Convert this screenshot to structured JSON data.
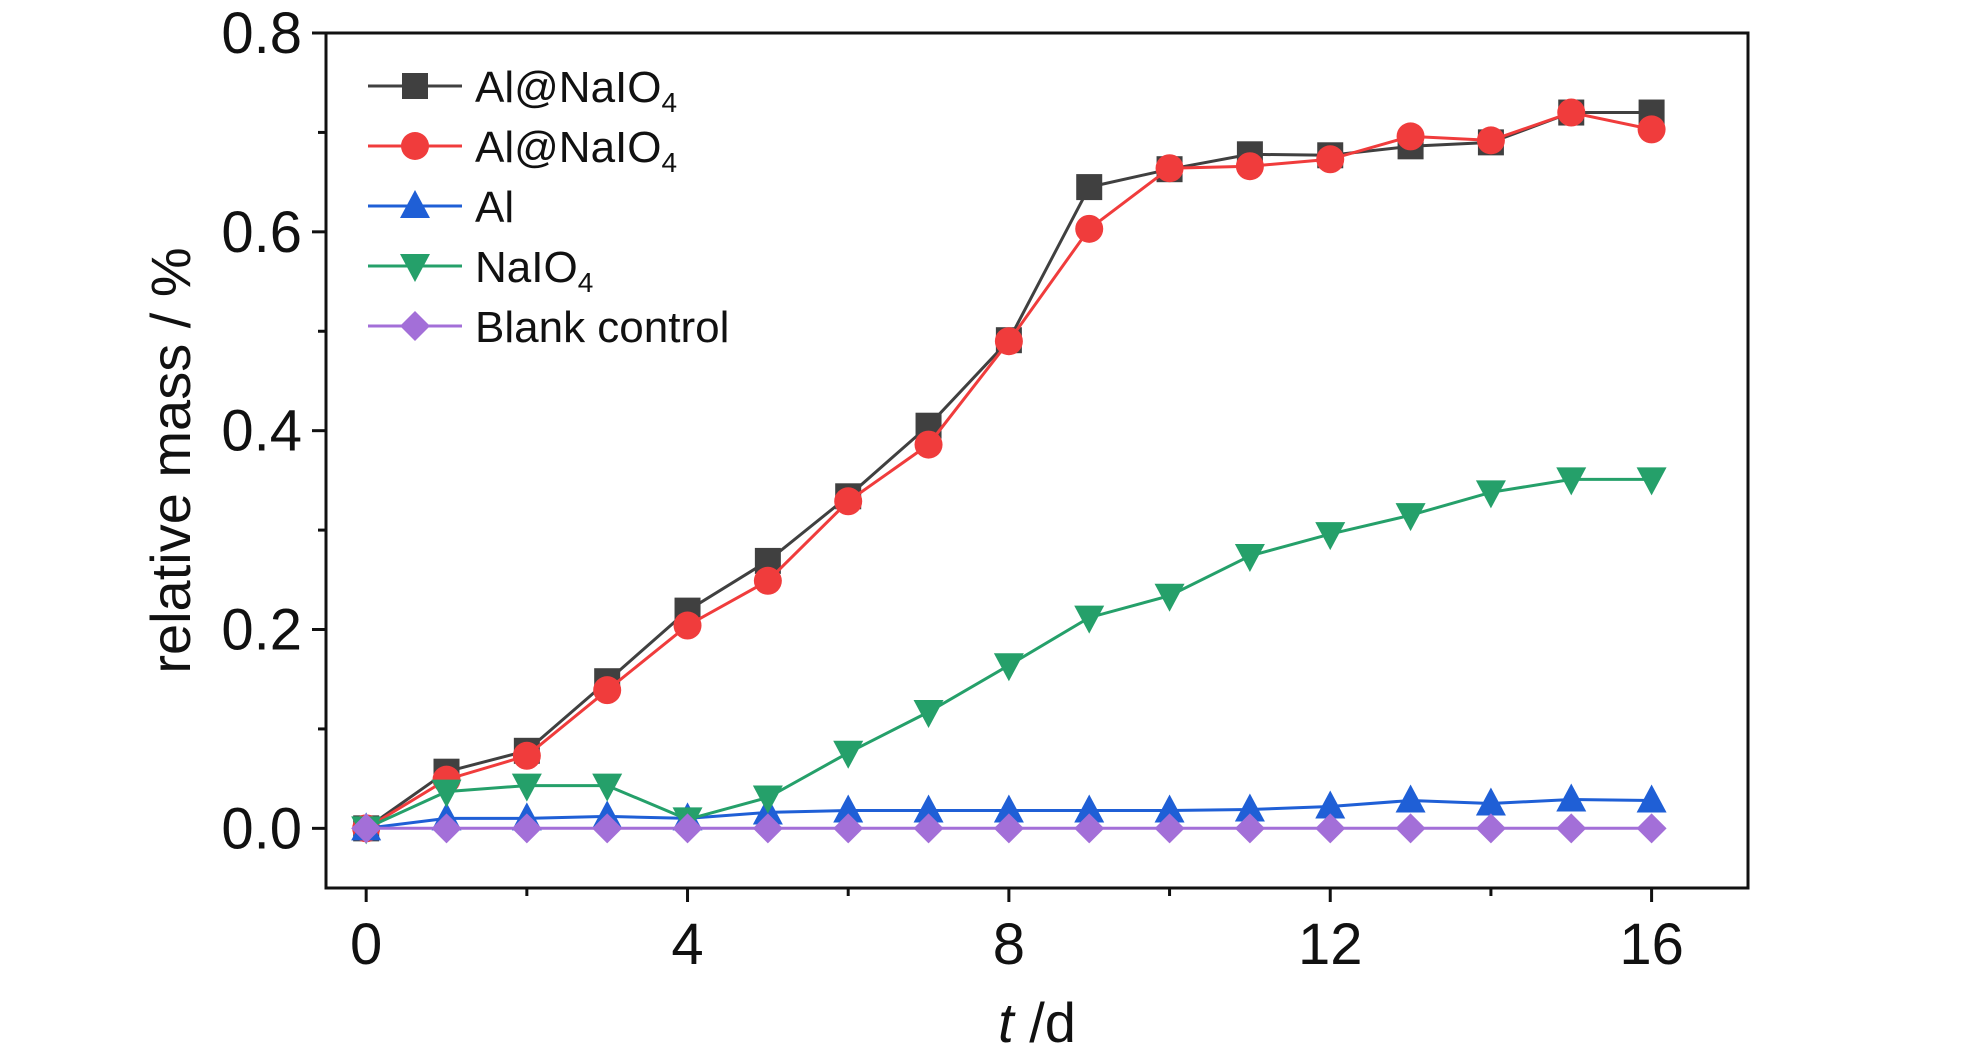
{
  "chart_data": {
    "type": "line",
    "title": "",
    "xlabel_italic": "t",
    "xlabel_unit": " /d",
    "ylabel": "relative mass / %",
    "xlim": [
      -0.5,
      17.2
    ],
    "ylim": [
      -0.06,
      0.8
    ],
    "xticks": [
      0,
      4,
      8,
      12,
      16
    ],
    "xtick_labels": [
      "0",
      "4",
      "8",
      "12",
      "16"
    ],
    "yticks": [
      0.0,
      0.2,
      0.4,
      0.6,
      0.8
    ],
    "ytick_labels": [
      "0.0",
      "0.2",
      "0.4",
      "0.6",
      "0.8"
    ],
    "x": [
      0,
      1,
      2,
      3,
      4,
      5,
      6,
      7,
      8,
      9,
      10,
      11,
      12,
      13,
      14,
      15,
      16
    ],
    "legend_position": "top-left",
    "series": [
      {
        "name_main": "Al@NaIO",
        "name_sub": "4",
        "color": "#404040",
        "marker": "square",
        "values": [
          0.0,
          0.057,
          0.078,
          0.148,
          0.219,
          0.269,
          0.334,
          0.405,
          0.491,
          0.645,
          0.663,
          0.678,
          0.677,
          0.686,
          0.69,
          0.72,
          0.72
        ]
      },
      {
        "name_main": "Al@NaIO",
        "name_sub": "4",
        "color": "#f03c3c",
        "marker": "circle",
        "values": [
          0.0,
          0.049,
          0.073,
          0.139,
          0.204,
          0.249,
          0.329,
          0.386,
          0.49,
          0.603,
          0.664,
          0.666,
          0.673,
          0.696,
          0.692,
          0.72,
          0.703
        ]
      },
      {
        "name_main": "Al",
        "name_sub": "",
        "color": "#1f5fd6",
        "marker": "triangle-up",
        "values": [
          0.0,
          0.01,
          0.01,
          0.012,
          0.01,
          0.016,
          0.018,
          0.018,
          0.018,
          0.018,
          0.018,
          0.019,
          0.022,
          0.028,
          0.025,
          0.029,
          0.028
        ]
      },
      {
        "name_main": "NaIO",
        "name_sub": "4",
        "color": "#25a06a",
        "marker": "triangle-down",
        "values": [
          0.0,
          0.037,
          0.043,
          0.043,
          0.009,
          0.031,
          0.076,
          0.117,
          0.164,
          0.212,
          0.234,
          0.274,
          0.296,
          0.315,
          0.338,
          0.351,
          0.351
        ]
      },
      {
        "name_main": "Blank control",
        "name_sub": "",
        "color": "#a36fd8",
        "marker": "diamond",
        "values": [
          0.0,
          0.0,
          0.0,
          0.0,
          0.0,
          0.0,
          0.0,
          0.0,
          0.0,
          0.0,
          0.0,
          0.0,
          0.0,
          0.0,
          0.0,
          0.0,
          0.0
        ]
      }
    ]
  }
}
